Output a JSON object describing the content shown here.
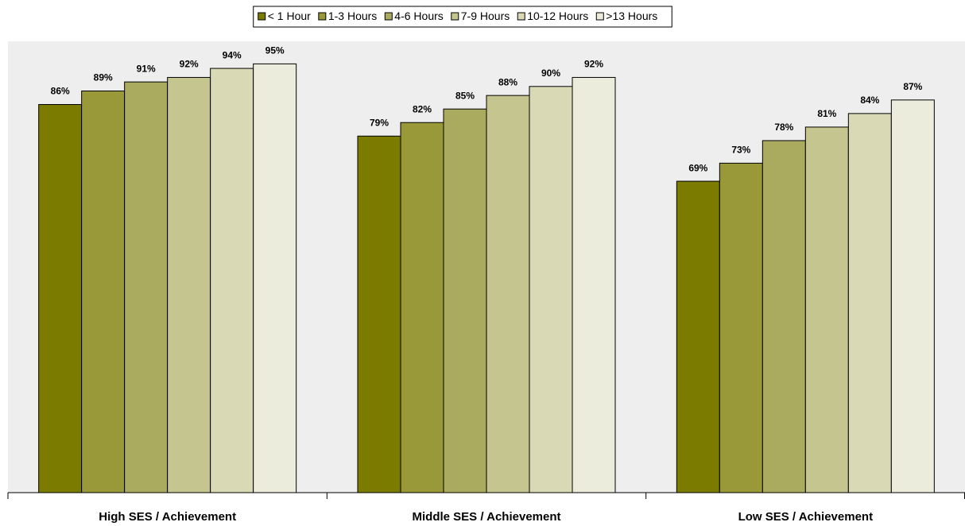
{
  "chart_data": {
    "type": "bar",
    "categories": [
      "High SES / Achievement",
      "Middle SES / Achievement",
      "Low SES / Achievement"
    ],
    "series": [
      {
        "name": "< 1 Hour",
        "color": "#7b7b00",
        "values": [
          86,
          79,
          69
        ],
        "value_labels": [
          "86%",
          "79%",
          "69%"
        ]
      },
      {
        "name": "1-3 Hours",
        "color": "#99993a",
        "values": [
          89,
          82,
          73
        ],
        "value_labels": [
          "89%",
          "82%",
          "73%"
        ]
      },
      {
        "name": "4-6 Hours",
        "color": "#abab60",
        "values": [
          91,
          85,
          78
        ],
        "value_labels": [
          "91%",
          "85%",
          "78%"
        ]
      },
      {
        "name": "7-9 Hours",
        "color": "#c5c58f",
        "values": [
          92,
          88,
          81
        ],
        "value_labels": [
          "92%",
          "88%",
          "81%"
        ]
      },
      {
        "name": "10-12 Hours",
        "color": "#d9d9b5",
        "values": [
          94,
          90,
          84
        ],
        "value_labels": [
          "94%",
          "90%",
          "84%"
        ]
      },
      {
        "name": ">13 Hours",
        "color": "#ececdc",
        "values": [
          95,
          92,
          87
        ],
        "value_labels": [
          "95%",
          "92%",
          "87%"
        ]
      }
    ],
    "ylim": [
      0,
      100
    ],
    "legend": "top"
  }
}
